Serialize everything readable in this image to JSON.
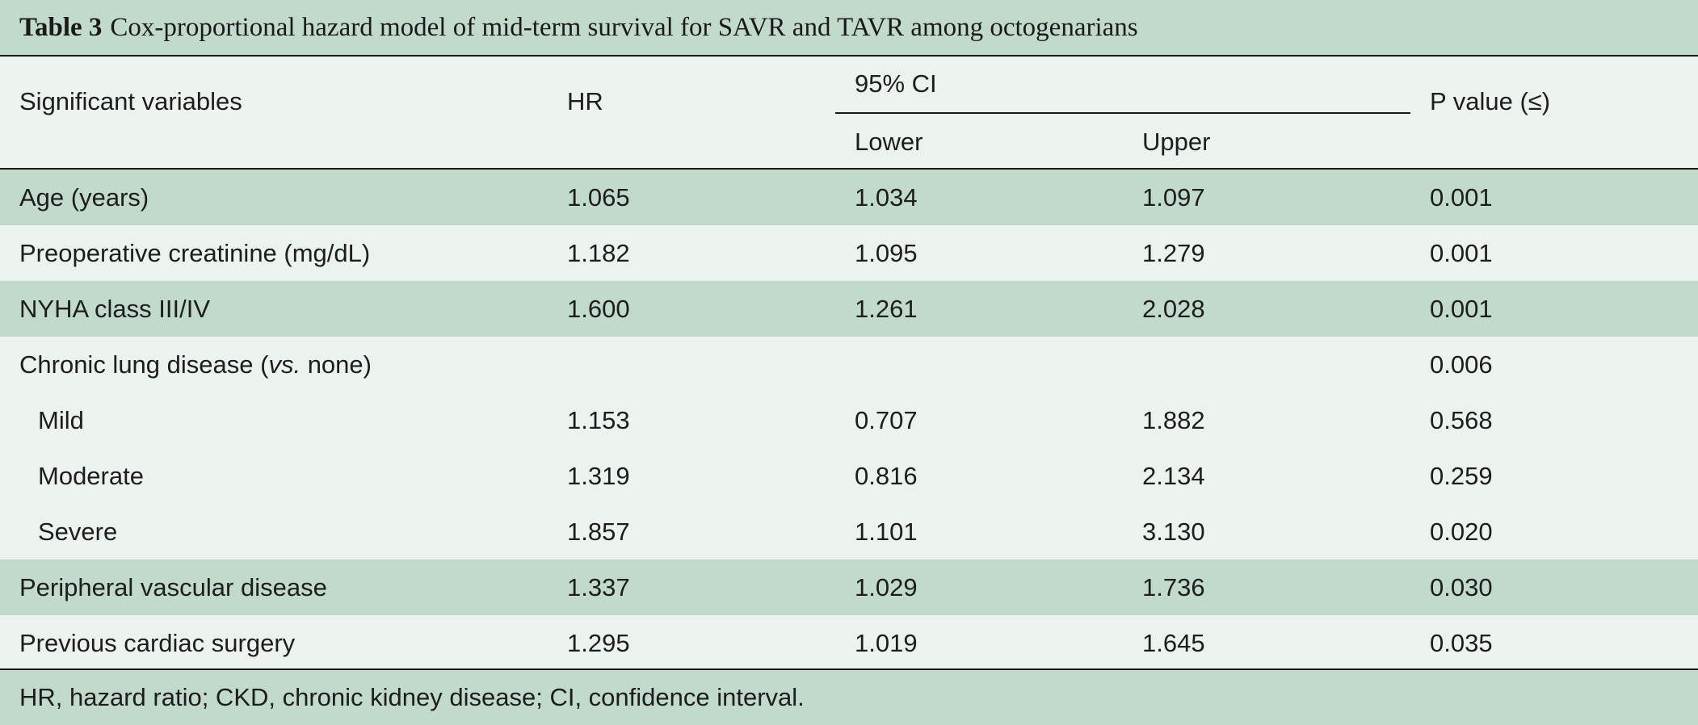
{
  "caption": {
    "label": "Table 3",
    "text": "Cox-proportional hazard model of mid-term survival for SAVR and TAVR among octogenarians"
  },
  "header": {
    "variables": "Significant variables",
    "hr": "HR",
    "ci": "95% CI",
    "lower": "Lower",
    "upper": "Upper",
    "p": "P value (≤)"
  },
  "rows": [
    {
      "label": "Age (years)",
      "hr": "1.065",
      "lower": "1.034",
      "upper": "1.097",
      "p": "0.001"
    },
    {
      "label": "Preoperative creatinine (mg/dL)",
      "hr": "1.182",
      "lower": "1.095",
      "upper": "1.279",
      "p": "0.001"
    },
    {
      "label": "NYHA class III/IV",
      "hr": "1.600",
      "lower": "1.261",
      "upper": "2.028",
      "p": "0.001"
    },
    {
      "label_pre": "Chronic lung disease (",
      "label_em": "vs.",
      "label_post": " none)",
      "hr": "",
      "lower": "",
      "upper": "",
      "p": "0.006"
    },
    {
      "label": "Mild",
      "hr": "1.153",
      "lower": "0.707",
      "upper": "1.882",
      "p": "0.568"
    },
    {
      "label": "Moderate",
      "hr": "1.319",
      "lower": "0.816",
      "upper": "2.134",
      "p": "0.259"
    },
    {
      "label": "Severe",
      "hr": "1.857",
      "lower": "1.101",
      "upper": "3.130",
      "p": "0.020"
    },
    {
      "label": "Peripheral vascular disease",
      "hr": "1.337",
      "lower": "1.029",
      "upper": "1.736",
      "p": "0.030"
    },
    {
      "label": "Previous cardiac surgery",
      "hr": "1.295",
      "lower": "1.019",
      "upper": "1.645",
      "p": "0.035"
    }
  ],
  "footnote": "HR, hazard ratio; CKD, chronic kidney disease; CI, confidence interval.",
  "colors": {
    "band": "#c1dacb",
    "background": "#ecf3ee",
    "rule": "#1a1a1a"
  }
}
